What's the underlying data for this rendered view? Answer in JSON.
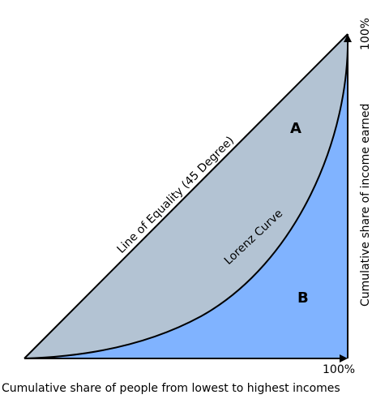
{
  "labels": {
    "equality_line": "Line of Equality (45 Degree)",
    "lorenz_curve": "Lorenz Curve",
    "region_a": "A",
    "region_b": "B",
    "x_axis": "Cumulative share of people from lowest to highest incomes",
    "y_axis": "Cumulative share of income earned",
    "x_max": "100%",
    "y_max": "100%"
  },
  "colors": {
    "region_a_fill": "#b3c3d3",
    "region_b_fill": "#80b3ff",
    "stroke": "#000000"
  }
}
